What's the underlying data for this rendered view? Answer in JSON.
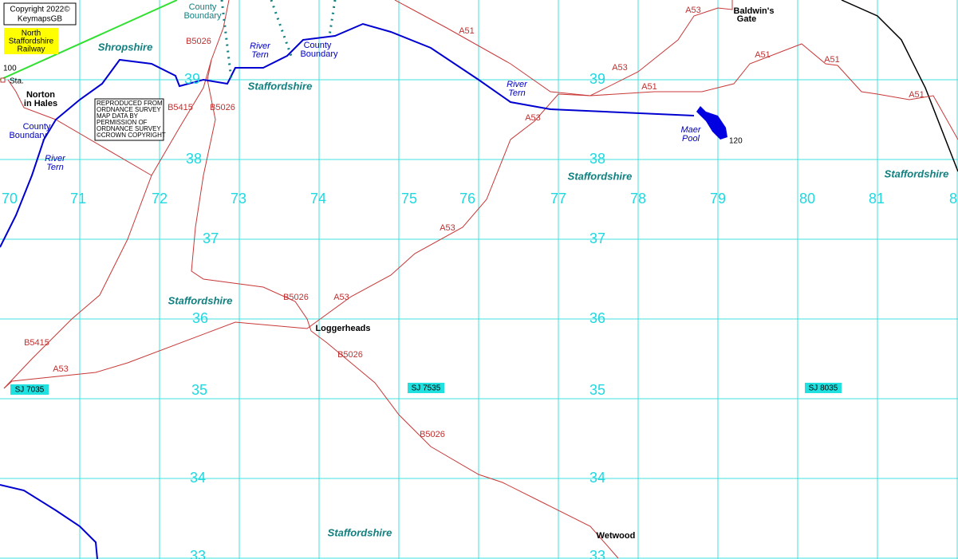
{
  "copyright": [
    "Copyright 2022©",
    "KeymapsGB"
  ],
  "railway": [
    "North",
    "Staffordshire",
    "Railway"
  ],
  "os_notice": [
    "REPRODUCED FROM",
    "ORDNANCE SURVEY",
    "MAP DATA BY",
    "PERMISSION OF",
    "ORDNANCE SURVEY",
    "©CROWN COPYRIGHT"
  ],
  "eastings": [
    70,
    71,
    72,
    73,
    74,
    75,
    76,
    77,
    78,
    79,
    80,
    81,
    8
  ],
  "northings_west": [
    39,
    38,
    37,
    36,
    35,
    34,
    33
  ],
  "northings_east": [
    39,
    38,
    37,
    36,
    35,
    34,
    33
  ],
  "grid_refs": [
    "SJ 7035",
    "SJ 7535",
    "SJ 8035"
  ],
  "road_labels": [
    "A53",
    "A51",
    "A53",
    "A51",
    "A51",
    "A51",
    "A51",
    "A53",
    "B5026",
    "B5415",
    "B5026",
    "A53",
    "B5026",
    "A53",
    "B5415",
    "A53",
    "B5026",
    "B5026"
  ],
  "places": {
    "baldwins_gate": [
      "Baldwin's",
      "Gate"
    ],
    "norton_in_hales": [
      "Norton",
      "in Hales"
    ],
    "loggerheads": "Loggerheads",
    "wetwood": "Wetwood",
    "station": "Sta."
  },
  "counties": [
    "Shropshire",
    "Staffordshire",
    "Staffordshire",
    "Staffordshire",
    "Staffordshire",
    "Staffordshire"
  ],
  "river_tern": [
    [
      "River",
      "Tern"
    ],
    [
      "River",
      "Tern"
    ],
    [
      "River",
      "Tern"
    ]
  ],
  "maer_pool": [
    "Maer",
    "Pool"
  ],
  "county_boundary": [
    [
      "County",
      "Boundary"
    ],
    [
      "County",
      "Boundary"
    ],
    [
      "County",
      "Boundary"
    ]
  ],
  "spot_heights": [
    100,
    120
  ]
}
